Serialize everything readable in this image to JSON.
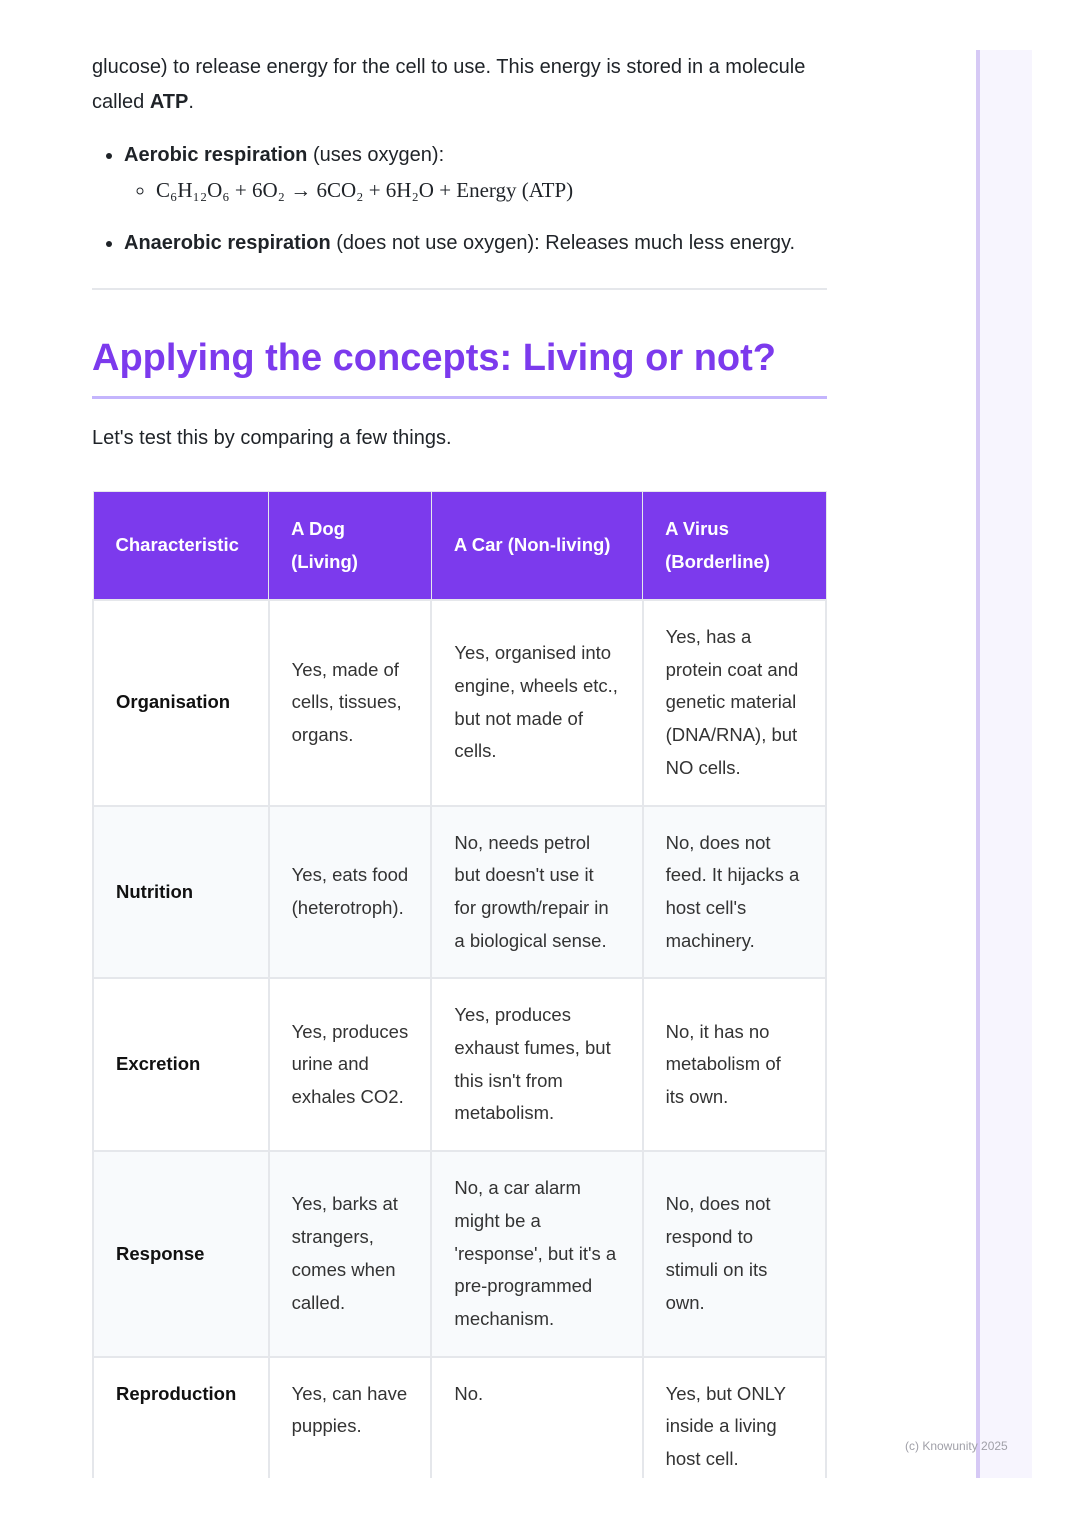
{
  "intro_text": {
    "before": "glucose) to release energy for the cell to use. This energy is stored in a molecule called ",
    "bold": "ATP",
    "after": "."
  },
  "bullets": [
    {
      "bold": "Aerobic respiration",
      "rest": " (uses oxygen):",
      "sub": "C₆H₁₂O₆ + 6O₂ → 6CO₂ + 6H₂O + Energy (ATP)"
    },
    {
      "bold": "Anaerobic respiration",
      "rest": " (does not use oxygen): Releases much less energy."
    }
  ],
  "heading": "Applying the concepts: Living or not?",
  "lead": "Let's test this by comparing a few things.",
  "table": {
    "headers": [
      "Characteristic",
      "A Dog (Living)",
      "A Car (Non-living)",
      "A Virus (Borderline)"
    ],
    "rows": [
      [
        "Organisation",
        "Yes, made of cells, tissues, organs.",
        "Yes, organised into engine, wheels etc., but not made of cells.",
        "Yes, has a protein coat and genetic material (DNA/RNA), but NO cells."
      ],
      [
        "Nutrition",
        "Yes, eats food (heterotroph).",
        "No, needs petrol but doesn't use it for growth/repair in a biological sense.",
        "No, does not feed. It hijacks a host cell's machinery."
      ],
      [
        "Excretion",
        "Yes, produces urine and exhales CO2.",
        "Yes, produces exhaust fumes, but this isn't from metabolism.",
        "No, it has no metabolism of its own."
      ],
      [
        "Response",
        "Yes, barks at strangers, comes when called.",
        "No, a car alarm might be a 'response', but it's a pre-programmed mechanism.",
        "No, does not respond to stimuli on its own."
      ],
      [
        "Reproduction",
        "Yes, can have puppies.",
        "No.",
        "Yes, but ONLY inside a living host cell."
      ]
    ]
  },
  "footer": "(c) Knowunity 2025",
  "colors": {
    "accent": "#7c3aed",
    "accent_light": "#c4b5fd"
  }
}
